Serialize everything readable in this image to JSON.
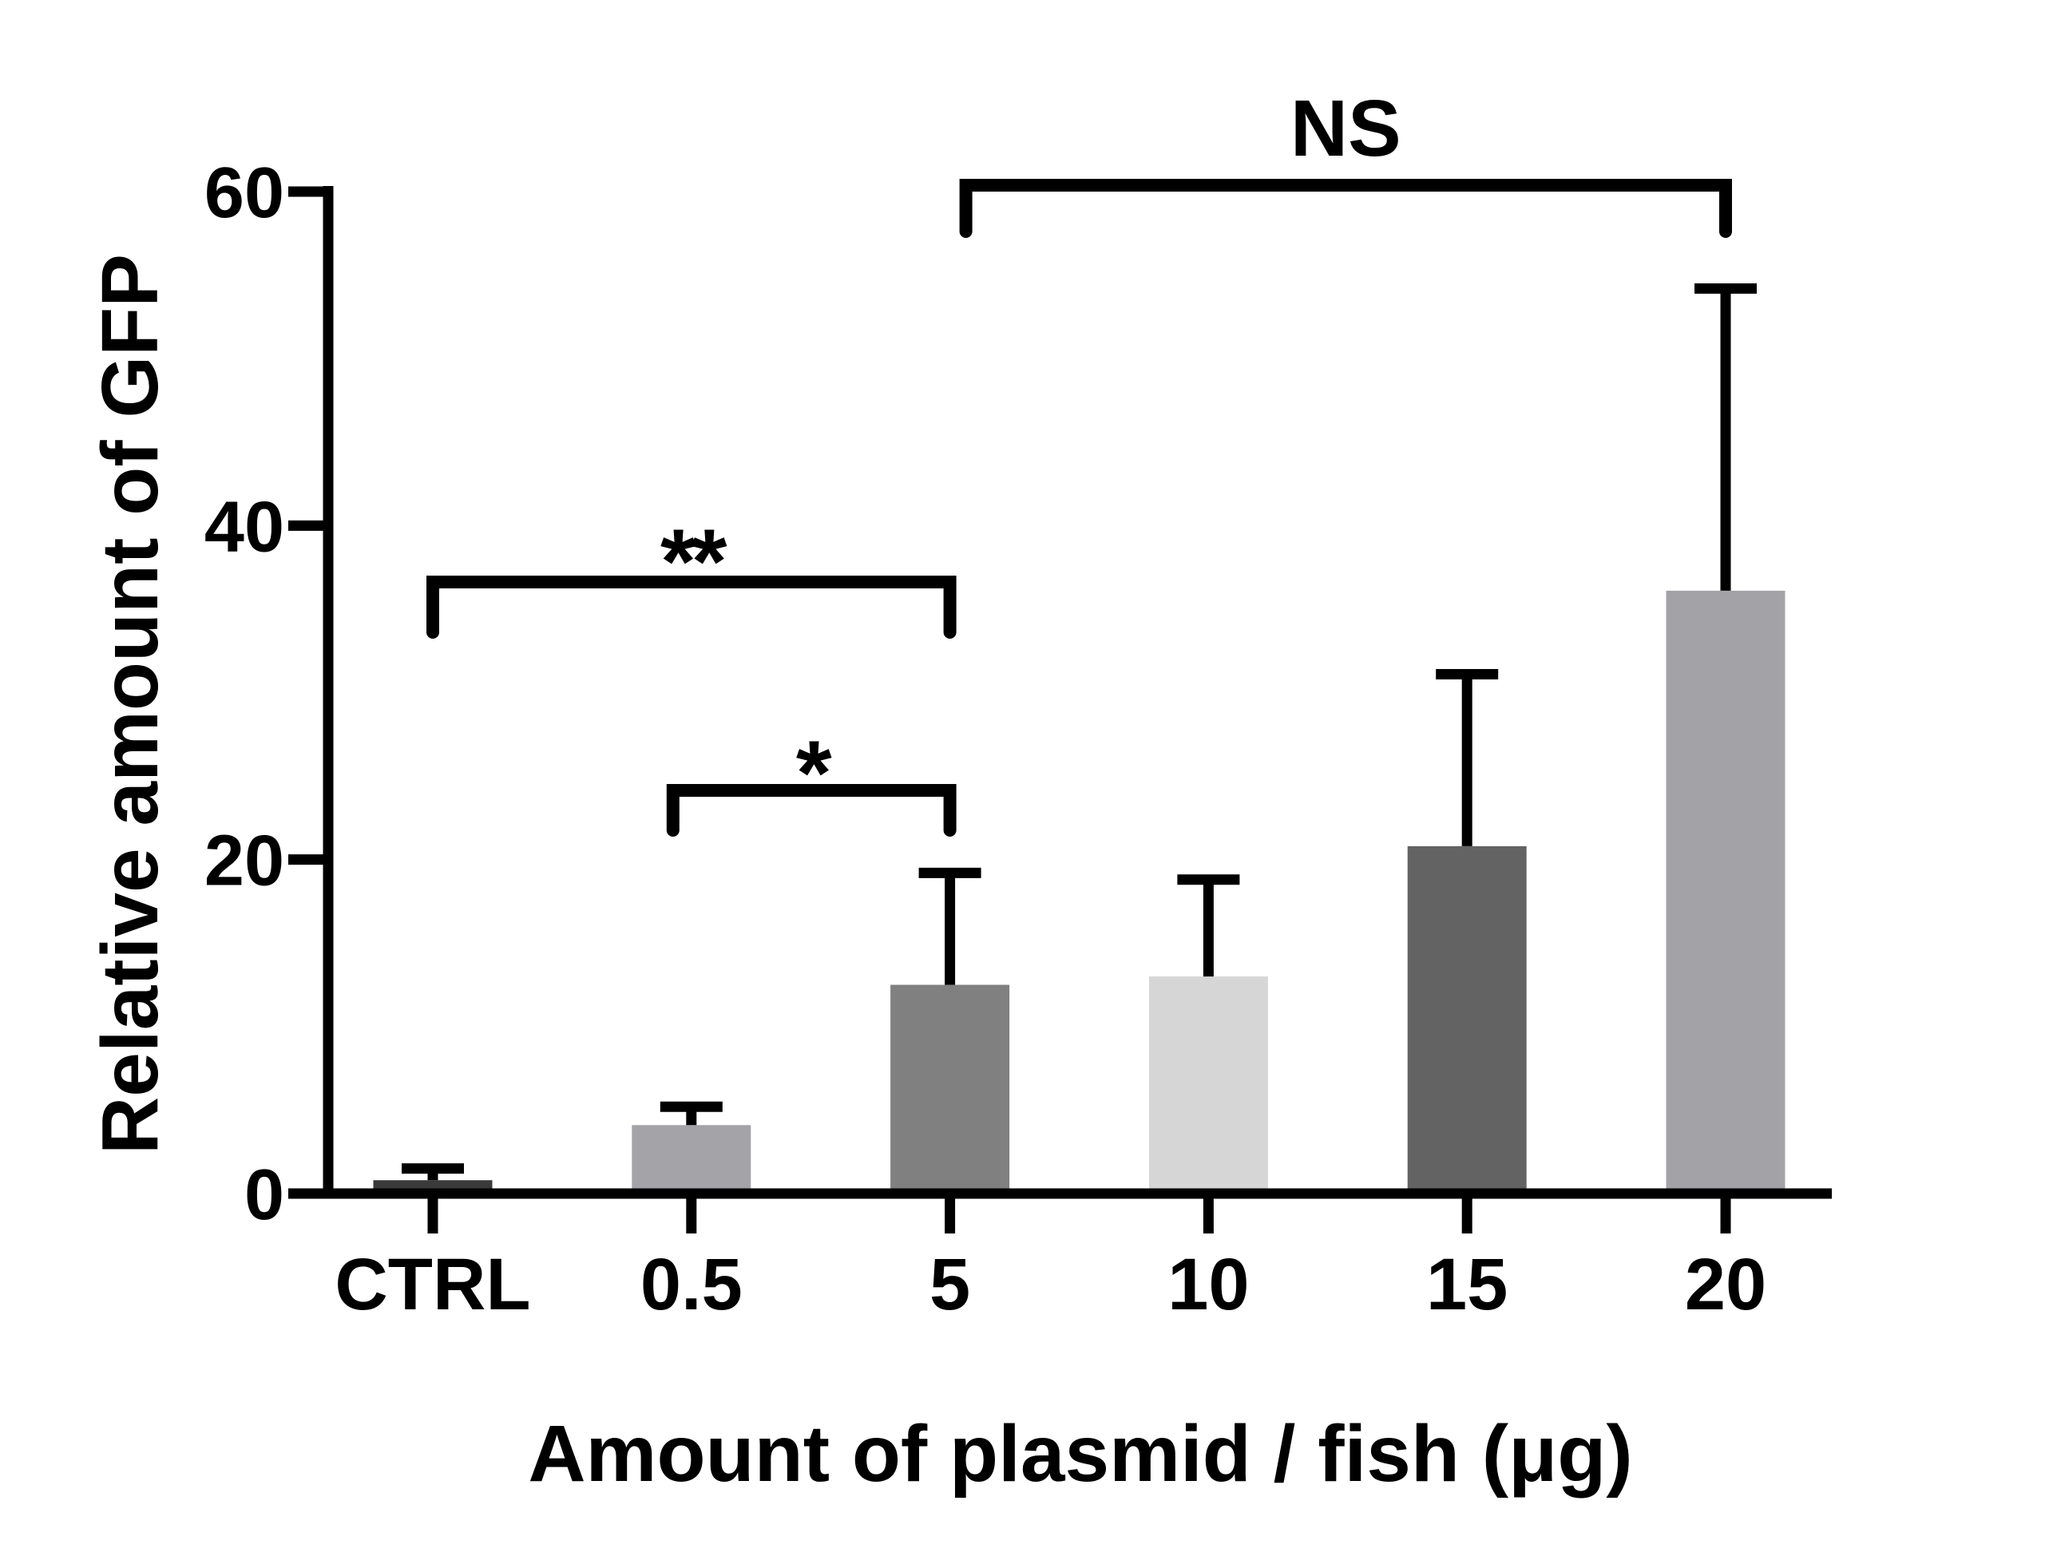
{
  "chart_data": {
    "type": "bar",
    "xlabel": "Amount of plasmid / fish (μg)",
    "ylabel": "Relative amount of GFP",
    "categories": [
      "CTRL",
      "0.5",
      "5",
      "10",
      "15",
      "20"
    ],
    "values": [
      0.8,
      4.1,
      12.5,
      13.0,
      20.8,
      36.1
    ],
    "errors": [
      0.7,
      1.1,
      6.7,
      5.8,
      10.3,
      18.1
    ],
    "bar_colors": [
      "#3a3a3a",
      "#a4a4a8",
      "#808080",
      "#d6d6d6",
      "#636363",
      "#a3a3a7"
    ],
    "ylim": [
      0,
      60
    ],
    "yticks": [
      0,
      20,
      40,
      60
    ],
    "ytick_labels": [
      "0",
      "20",
      "40",
      "60"
    ],
    "grid": false,
    "annotations": [
      {
        "label": "NS",
        "from": 2,
        "to": 5
      },
      {
        "label": "**",
        "from": 0,
        "to": 2
      },
      {
        "label": "*",
        "from": 1,
        "to": 2
      }
    ]
  }
}
